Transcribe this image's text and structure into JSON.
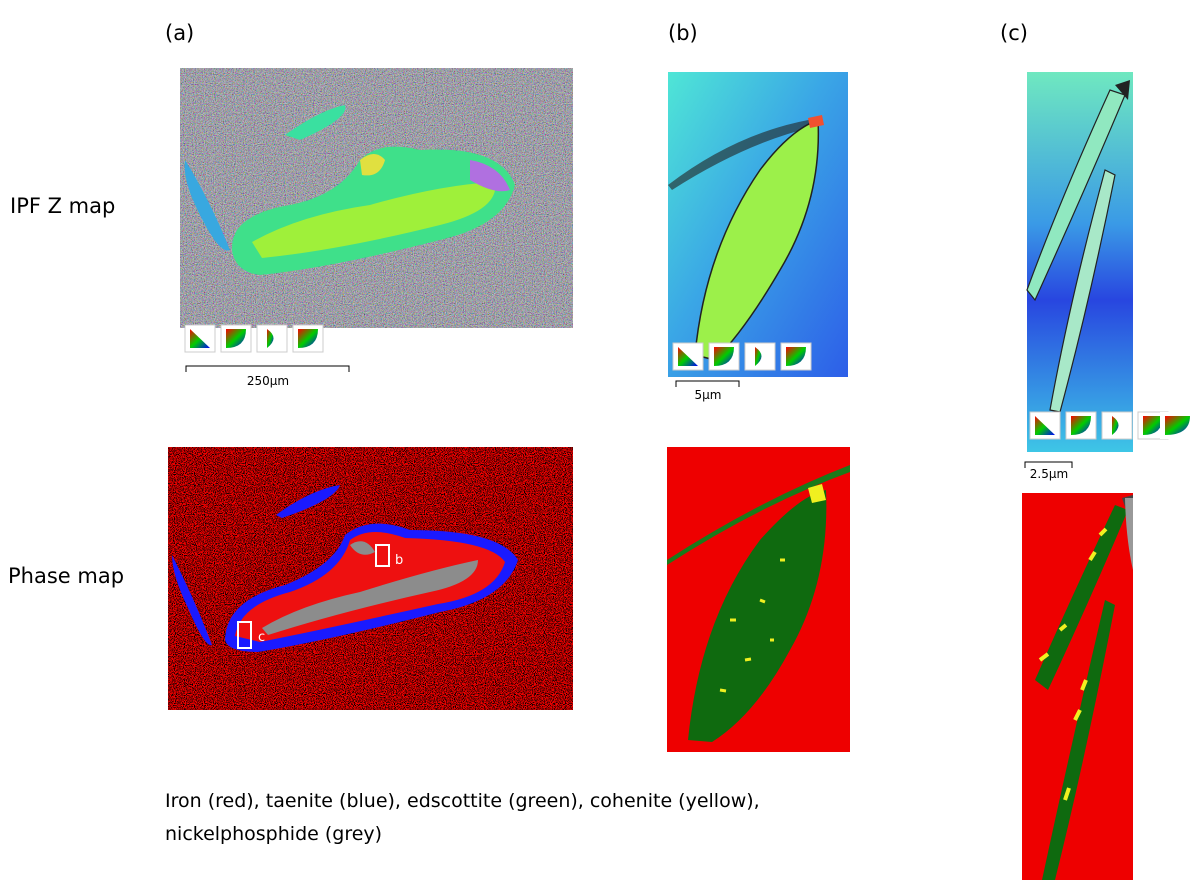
{
  "columns": [
    "(a)",
    "(b)",
    "(c)"
  ],
  "rows": [
    "IPF Z map",
    "Phase map"
  ],
  "scale_bars": [
    "250µm",
    "5µm",
    "2.5µm"
  ],
  "region_markers": [
    "b",
    "c"
  ],
  "caption": [
    "Iron (red), taenite (blue), edscottite (green), cohenite (yellow),",
    "nickelphosphide (grey)"
  ]
}
